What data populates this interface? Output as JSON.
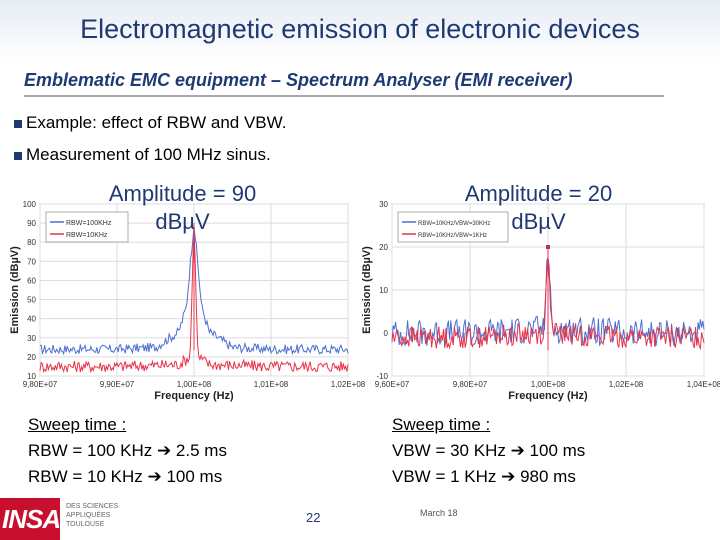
{
  "header": {
    "title": "Electromagnetic emission of electronic devices",
    "subtitle": "Emblematic EMC equipment – Spectrum Analyser (EMI receiver)"
  },
  "bullets": [
    "Example: effect of RBW and VBW.",
    "Measurement of 100 MHz sinus."
  ],
  "left": {
    "amplitude": "Amplitude = 90 dBµV",
    "sweep_title": "Sweep time :",
    "sweep_lines": [
      "RBW = 100 KHz ➔ 2.5 ms",
      "RBW = 10 KHz ➔ 100 ms"
    ]
  },
  "right": {
    "amplitude": "Amplitude = 20 dBµV",
    "sweep_title": "Sweep time :",
    "sweep_lines": [
      "VBW = 30 KHz ➔ 100 ms",
      "VBW = 1 KHz ➔ 980 ms"
    ]
  },
  "footer": {
    "page": "22",
    "date": "March 18"
  },
  "logo": {
    "text": "INSA",
    "sub": [
      "DES SCIENCES",
      "APPLIQUÉES",
      "TOULOUSE"
    ]
  },
  "chart_data": [
    {
      "type": "line",
      "xlabel": "Frequency (Hz)",
      "ylabel": "Emission (dBµV)",
      "xlim": [
        98000000.0,
        102000000.0
      ],
      "ylim": [
        10,
        100
      ],
      "x_tick_labels": [
        "9,80E+07",
        "9,90E+07",
        "1,00E+08",
        "1,01E+08",
        "1,02E+08"
      ],
      "y_tick_labels": [
        "10",
        "20",
        "30",
        "40",
        "50",
        "60",
        "70",
        "80",
        "90",
        "100"
      ],
      "legend": "top-left",
      "colors": {
        "rbw100": "#4a6fd0",
        "rbw10": "#e8324a"
      },
      "series": [
        {
          "name": "RBW=100KHz",
          "x": [
            98000000.0,
            99000000.0,
            99500000.0,
            99800000.0,
            99900000.0,
            100000000.0,
            100100000.0,
            100200000.0,
            100500000.0,
            101000000.0,
            102000000.0
          ],
          "values": [
            24,
            24,
            25,
            33,
            46,
            90,
            46,
            33,
            25,
            24,
            24
          ]
        },
        {
          "name": "RBW=10KHz",
          "x": [
            98000000.0,
            99000000.0,
            99800000.0,
            99950000.0,
            100000000.0,
            100050000.0,
            100200000.0,
            101000000.0,
            102000000.0
          ],
          "values": [
            15,
            15,
            16,
            20,
            90,
            20,
            16,
            15,
            15
          ]
        }
      ]
    },
    {
      "type": "line",
      "xlabel": "Frequency (Hz)",
      "ylabel": "Emission (dBµV)",
      "xlim": [
        96000000.0,
        104000000.0
      ],
      "ylim": [
        -10,
        30
      ],
      "x_tick_labels": [
        "9,60E+07",
        "9,80E+07",
        "1,00E+08",
        "1,02E+08",
        "1,04E+08"
      ],
      "y_tick_labels": [
        "30",
        "20",
        "10",
        "0",
        "-10"
      ],
      "legend": "top-left",
      "colors": {
        "vbw30": "#4a6fd0",
        "vbw1": "#e8324a"
      },
      "series": [
        {
          "name": "RBW=10KHz/VBW=30KHz",
          "x": [
            96000000.0,
            98000000.0,
            99900000.0,
            100000000.0,
            100100000.0,
            102000000.0,
            104000000.0
          ],
          "values": [
            0,
            0,
            1,
            20,
            1,
            0,
            0
          ]
        },
        {
          "name": "RBW=10KHz/VBW=1KHz",
          "x": [
            96000000.0,
            98000000.0,
            99900000.0,
            100000000.0,
            100100000.0,
            102000000.0,
            104000000.0
          ],
          "values": [
            -1,
            -1,
            0,
            20,
            0,
            -1,
            -1
          ]
        }
      ]
    }
  ]
}
